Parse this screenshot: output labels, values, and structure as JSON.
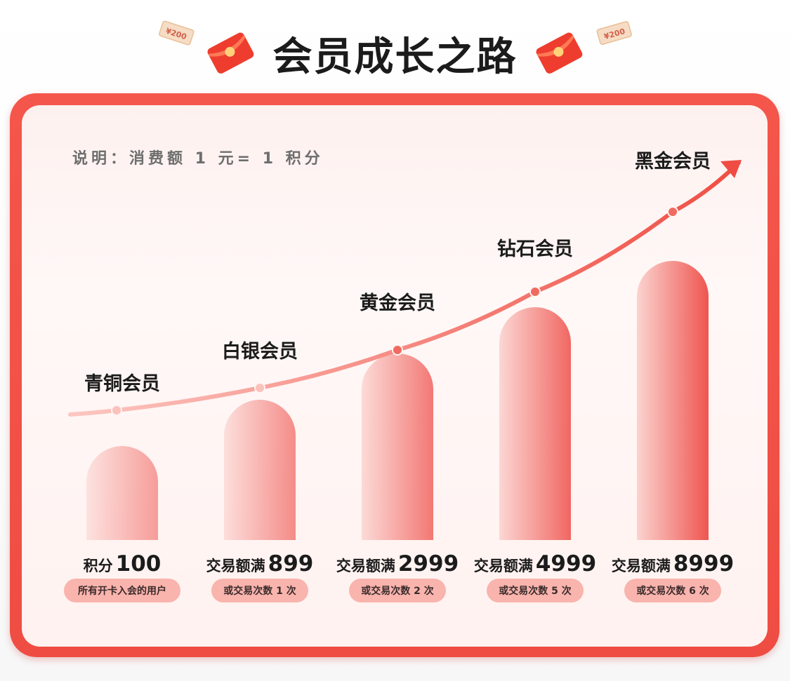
{
  "page": {
    "title": "会员成长之路",
    "note": "说明：消费额 1 元= 1 积分"
  },
  "decorations": {
    "coupon_text": "¥200"
  },
  "colors": {
    "accent": "#ef4d43",
    "bar_light": "#fbd3cf",
    "bar_dark": "#ef5550",
    "pill": "#f9b4ad"
  },
  "chart_data": {
    "type": "bar",
    "categories": [
      "青铜会员",
      "白银会员",
      "黄金会员",
      "钻石会员",
      "黑金会员"
    ],
    "requirements": [
      {
        "prefix": "积分",
        "value": "100",
        "condition": "所有开卡入会的用户"
      },
      {
        "prefix": "交易额满",
        "value": "899",
        "condition": "或交易次数 1 次"
      },
      {
        "prefix": "交易额满",
        "value": "2999",
        "condition": "或交易次数 2 次"
      },
      {
        "prefix": "交易额满",
        "value": "4999",
        "condition": "或交易次数 5 次"
      },
      {
        "prefix": "交易额满",
        "value": "8999",
        "condition": "或交易次数 6 次"
      }
    ],
    "levels": [
      1,
      2,
      3,
      4,
      5
    ],
    "trend": "increasing-arrow",
    "grid": false,
    "legend": "none"
  }
}
